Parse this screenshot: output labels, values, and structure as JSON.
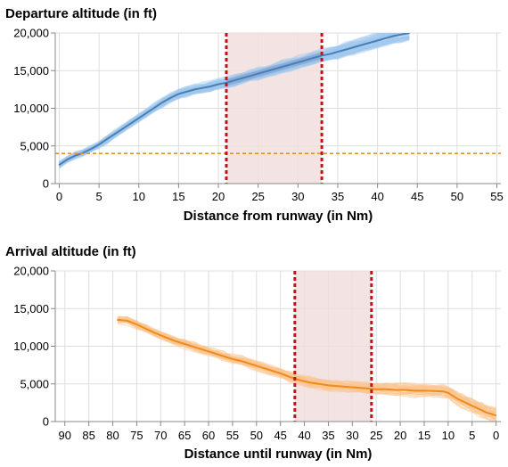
{
  "chart_data": [
    {
      "type": "line",
      "title": "Departure altitude (in ft)",
      "xlabel": "Distance from runway (in Nm)",
      "ylabel": "",
      "xlim": [
        -0.5,
        55.5
      ],
      "ylim": [
        0,
        20000
      ],
      "x_ticks": [
        0,
        5,
        10,
        15,
        20,
        25,
        30,
        35,
        40,
        45,
        50,
        55
      ],
      "y_ticks": [
        0,
        5000,
        10000,
        15000,
        20000
      ],
      "y_tick_labels": [
        "0",
        "5,000",
        "10,000",
        "15,000",
        "20,000"
      ],
      "grid": true,
      "colors": {
        "line": "#4a7eb5",
        "band": "#9fc8ee",
        "band_dark": "#6f8ec2",
        "threshold": "#e8902a",
        "marker": "#c0141c",
        "region": "#f2dede"
      },
      "series": [
        {
          "values_x": [
            0,
            1,
            2,
            3,
            4,
            5,
            6,
            7,
            8,
            9,
            10,
            11,
            12,
            13,
            14,
            15,
            16,
            17,
            18,
            19,
            20,
            21,
            22,
            23,
            24,
            25,
            26,
            27,
            28,
            29,
            30,
            31,
            32,
            33,
            34,
            35,
            36,
            37,
            38,
            39,
            40,
            41,
            42,
            43,
            44
          ],
          "values_y": [
            2500,
            3200,
            3700,
            4100,
            4600,
            5200,
            5900,
            6600,
            7300,
            8000,
            8700,
            9400,
            10100,
            10800,
            11400,
            11900,
            12200,
            12500,
            12700,
            12900,
            13200,
            13400,
            13700,
            14000,
            14300,
            14600,
            14900,
            15200,
            15500,
            15800,
            16100,
            16400,
            16700,
            17000,
            17200,
            17500,
            17800,
            18100,
            18400,
            18700,
            19000,
            19300,
            19600,
            19800,
            20000
          ]
        }
      ],
      "band_spread": 700,
      "threshold": 4000,
      "markers": [
        21,
        33
      ]
    },
    {
      "type": "line",
      "title": "Arrival altitude (in ft)",
      "xlabel": "Distance until runway (in Nm)",
      "ylabel": "",
      "xlim": [
        92,
        -1
      ],
      "ylim": [
        0,
        20000
      ],
      "x_ticks": [
        90,
        85,
        80,
        75,
        70,
        65,
        60,
        55,
        50,
        45,
        40,
        35,
        30,
        25,
        20,
        15,
        10,
        5,
        0
      ],
      "y_ticks": [
        0,
        5000,
        10000,
        15000,
        20000
      ],
      "y_tick_labels": [
        "0",
        "5,000",
        "10,000",
        "15,000",
        "20,000"
      ],
      "grid": true,
      "colors": {
        "line": "#f08a1c",
        "band": "#fcc690",
        "marker": "#c0141c",
        "region": "#f2dede"
      },
      "series": [
        {
          "values_x": [
            79,
            77,
            75,
            73,
            71,
            69,
            67,
            65,
            63,
            61,
            59,
            57,
            55,
            53,
            51,
            49,
            47,
            45,
            43,
            41,
            39,
            37,
            35,
            33,
            31,
            29,
            27,
            25,
            23,
            21,
            19,
            17,
            15,
            13,
            11,
            10,
            9,
            8,
            7,
            6,
            5,
            4,
            3,
            2,
            1,
            0
          ],
          "values_y": [
            13500,
            13400,
            12900,
            12300,
            11700,
            11200,
            10700,
            10300,
            9900,
            9500,
            9100,
            8700,
            8300,
            8000,
            7600,
            7200,
            6800,
            6400,
            5900,
            5500,
            5200,
            5000,
            4800,
            4700,
            4600,
            4500,
            4400,
            4300,
            4300,
            4200,
            4200,
            4100,
            4100,
            4050,
            4000,
            3800,
            3400,
            3000,
            2700,
            2400,
            2100,
            1800,
            1500,
            1200,
            1000,
            800
          ]
        }
      ],
      "band_spread": 900,
      "markers": [
        42,
        26
      ]
    }
  ]
}
